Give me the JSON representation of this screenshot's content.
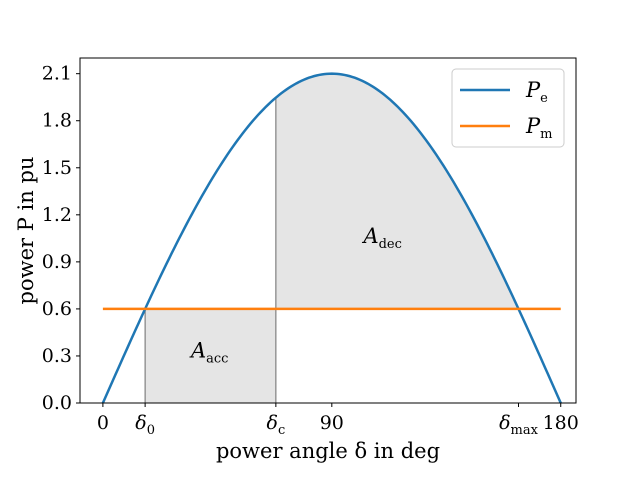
{
  "chart_data": {
    "type": "line",
    "xlabel": "power angle δ in deg",
    "ylabel": "power P in pu",
    "xlim": [
      -9,
      186
    ],
    "ylim": [
      0,
      2.2
    ],
    "y_ticks": [
      0.0,
      0.3,
      0.6,
      0.9,
      1.2,
      1.5,
      1.8,
      2.1
    ],
    "y_tick_labels": [
      "0.0",
      "0.3",
      "0.6",
      "0.9",
      "1.2",
      "1.5",
      "1.8",
      "2.1"
    ],
    "x_ticks": [
      {
        "value": 0,
        "label": "0",
        "subscript": ""
      },
      {
        "value": 16.6,
        "label": "δ",
        "subscript": "0"
      },
      {
        "value": 68,
        "label": "δ",
        "subscript": "c"
      },
      {
        "value": 90,
        "label": "90",
        "subscript": ""
      },
      {
        "value": 163.4,
        "label": "δ",
        "subscript": "max"
      },
      {
        "value": 180,
        "label": "180",
        "subscript": ""
      }
    ],
    "series": [
      {
        "name": "P",
        "name_subscript": "e",
        "color": "#1f77b4",
        "function": "2.1*sin(x)",
        "x_range": [
          0,
          180
        ]
      },
      {
        "name": "P",
        "name_subscript": "m",
        "color": "#ff7f0e",
        "constant": 0.6,
        "x_range": [
          0,
          180
        ]
      }
    ],
    "shaded_regions": [
      {
        "label": "A",
        "subscript": "acc",
        "x_from": 16.6,
        "x_to": 68,
        "label_at": [
          42,
          0.33
        ]
      },
      {
        "label": "A",
        "subscript": "dec",
        "x_from": 68,
        "x_to": 163.4,
        "label_at": [
          110,
          1.06
        ]
      }
    ],
    "legend_position": "top-right",
    "grid": false
  }
}
